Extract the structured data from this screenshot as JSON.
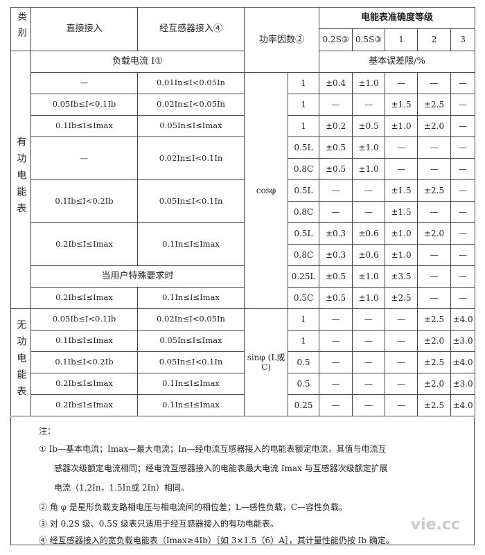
{
  "header": {
    "category": "类别",
    "direct": "直接接入",
    "via_transformer": "经互感器接入④",
    "power_factor": "功率因数②",
    "accuracy_class": "电能表准确度等级",
    "classes": [
      "0.2S③",
      "0.5S③",
      "1",
      "2",
      "3"
    ],
    "load_current": "负载电流 I①",
    "basic_error": "基本误差限/%"
  },
  "active": {
    "label": "有功电能表",
    "pf_label": "cosφ",
    "rows": [
      {
        "direct": "—",
        "trans": "0.01In≤I<0.05In",
        "pf": "1",
        "v": [
          "±0.4",
          "±1.0",
          "—",
          "—",
          "—"
        ]
      },
      {
        "direct": "0.05Ib≤I<0.1Ib",
        "trans": "0.02In≤I<0.05In",
        "pf": "1",
        "v": [
          "—",
          "—",
          "±1.5",
          "±2.5",
          "—"
        ]
      },
      {
        "direct": "0.1Ib≤I≤Imax",
        "trans": "0.05In≤I≤Imax",
        "pf": "1",
        "v": [
          "±0.2",
          "±0.5",
          "±1.0",
          "±2.0",
          "—"
        ]
      },
      {
        "direct": "—",
        "trans": "0.02In≤I<0.1In",
        "pf": "0.5L",
        "v": [
          "±0.5",
          "±1.0",
          "—",
          "—",
          "—"
        ]
      },
      {
        "pf": "0.8C",
        "v": [
          "±0.5",
          "±1.0",
          "—",
          "—",
          "—"
        ]
      },
      {
        "direct": "0.1Ib≤I<0.2Ib",
        "trans": "0.05In≤I<0.1In",
        "pf": "0.5L",
        "v": [
          "—",
          "—",
          "±1.5",
          "±2.5",
          "—"
        ]
      },
      {
        "pf": "0.8C",
        "v": [
          "—",
          "—",
          "±1.5",
          "—",
          "—"
        ]
      },
      {
        "direct": "0.2Ib≤I≤Imax",
        "trans": "0.1In≤I≤Imax",
        "pf": "0.5L",
        "v": [
          "±0.3",
          "±0.6",
          "±1.0",
          "±2.0",
          "—"
        ]
      },
      {
        "pf": "0.8C",
        "v": [
          "±0.3",
          "±0.6",
          "±1.0",
          "—",
          "—"
        ]
      },
      {
        "special": "当用户特殊要求时",
        "pf": "0.25L",
        "v": [
          "±0.5",
          "±1.0",
          "±3.5",
          "—",
          "—"
        ]
      },
      {
        "direct": "0.2Ib≤I≤Imax",
        "trans": "0.1In≤I≤Imax",
        "pf": "0.5C",
        "v": [
          "±0.5",
          "±1.0",
          "±2.5",
          "—",
          "—"
        ]
      }
    ]
  },
  "reactive": {
    "label": "无功电能表",
    "pf_label": "sinφ (L或C)",
    "rows": [
      {
        "direct": "0.05Ib≤I<0.1Ib",
        "trans": "0.02In≤I<0.05In",
        "pf": "1",
        "v": [
          "—",
          "—",
          "—",
          "±2.5",
          "±4.0"
        ]
      },
      {
        "direct": "0.1Ib≤I≤Imax",
        "trans": "0.05In≤I≤Imax",
        "pf": "1",
        "v": [
          "—",
          "—",
          "—",
          "±2.0",
          "±3.0"
        ]
      },
      {
        "direct": "0.1Ib≤I<0.2Ib",
        "trans": "0.05In≤I<0.1In",
        "pf": "0.5",
        "v": [
          "—",
          "—",
          "—",
          "±2.5",
          "±4.0"
        ]
      },
      {
        "direct": "0.2Ib≤I≤Imax",
        "trans": "0.1In≤I≤Imax",
        "pf": "0.5",
        "v": [
          "—",
          "—",
          "—",
          "±2.0",
          "±3.0"
        ]
      },
      {
        "direct": "0.2Ib≤I≤Imax",
        "trans": "0.1In≤I≤Imax",
        "pf": "0.25",
        "v": [
          "—",
          "—",
          "—",
          "±2.5",
          "±4.0"
        ]
      }
    ]
  },
  "notes": {
    "title": "注：",
    "lines": [
      "① Ib—基本电流；Imax—最大电流；In—经电流互感器接入的电能表额定电流，其值与电流互",
      "感器次级额定电流相同；经电流互感器接入的电能表最大电流 Imax 与互感器次级额定扩展",
      "电流（1.2In，1.5In或 2In）相同。",
      "② 角 φ 是星形负载支路相电压与相电流间的相位差；L—感性负载，C—容性负载。",
      "③ 对 0.2S 级、0.5S 级表只适用于经互感器接入的有功电能表。",
      "④ 经互感器接入的宽负载电能表（Imax≥4Ib）［如 3×1.5（6）A］，其计量性能仍按 Ib 确定。"
    ]
  },
  "watermark": "vie.cc"
}
